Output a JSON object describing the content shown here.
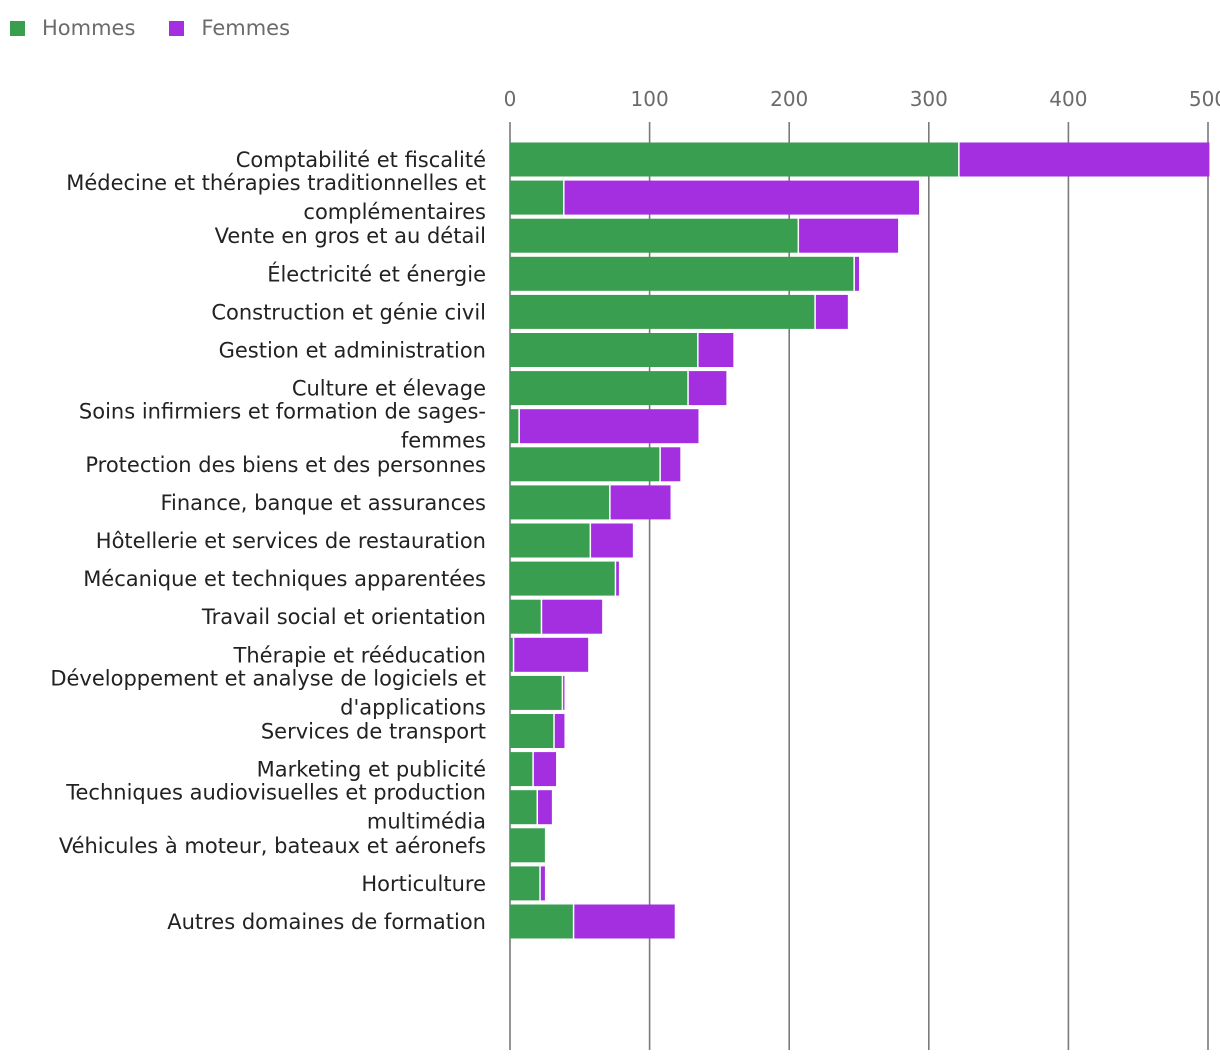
{
  "chart_data": {
    "type": "bar",
    "orientation": "horizontal",
    "stacked": true,
    "title": "",
    "xlabel": "",
    "ylabel": "",
    "xlim": [
      0,
      500
    ],
    "ticks": [
      0,
      100,
      200,
      300,
      400,
      500
    ],
    "grid": true,
    "legend_position": "top-left",
    "categories": [
      [
        "Comptabilité et fiscalité"
      ],
      [
        "Médecine et thérapies traditionnelles et",
        "complémentaires"
      ],
      [
        "Vente en gros et au détail"
      ],
      [
        "Électricité et énergie"
      ],
      [
        "Construction et génie civil"
      ],
      [
        "Gestion et administration"
      ],
      [
        "Culture et élevage"
      ],
      [
        "Soins infirmiers et formation de sages-",
        "femmes"
      ],
      [
        "Protection des biens et des personnes"
      ],
      [
        "Finance, banque et assurances"
      ],
      [
        "Hôtellerie et services de restauration"
      ],
      [
        "Mécanique et techniques apparentées"
      ],
      [
        "Travail social et orientation"
      ],
      [
        "Thérapie et rééducation"
      ],
      [
        "Développement et analyse de logiciels et",
        "d'applications"
      ],
      [
        "Services de transport"
      ],
      [
        "Marketing et publicité"
      ],
      [
        "Techniques audiovisuelles et production",
        "multimédia"
      ],
      [
        "Véhicules à moteur, bateaux et aéronefs"
      ],
      [
        "Horticulture"
      ],
      [
        "Autres domaines de formation"
      ]
    ],
    "series": [
      {
        "name": "Hommes",
        "color": "#3a9e50",
        "values": [
          321,
          38,
          206,
          246,
          218,
          134,
          127,
          6,
          107,
          71,
          57,
          75,
          22,
          2,
          37,
          31,
          16,
          19,
          25,
          21,
          45
        ]
      },
      {
        "name": "Femmes",
        "color": "#a32fe0",
        "values": [
          180,
          255,
          72,
          4,
          24,
          26,
          28,
          129,
          15,
          44,
          31,
          3,
          44,
          54,
          2,
          8,
          17,
          11,
          0,
          4,
          73
        ]
      }
    ]
  }
}
